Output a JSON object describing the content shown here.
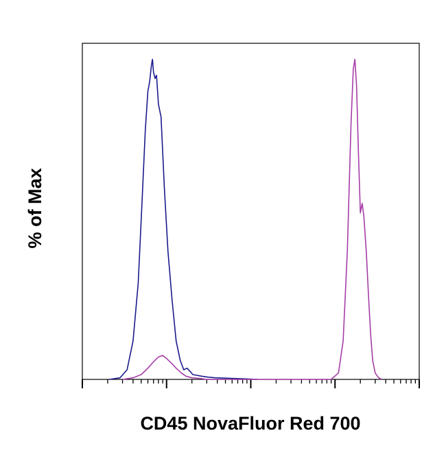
{
  "chart_data": {
    "type": "line",
    "title": "",
    "xlabel": "CD45 NovaFluor Red 700",
    "ylabel": "% of Max",
    "x_scale": "log",
    "xlim": [
      0.01,
      100
    ],
    "ylim": [
      0,
      105
    ],
    "grid": false,
    "legend": "none",
    "series": [
      {
        "color": "#1a1a8c",
        "x": [
          0.021,
          0.028,
          0.034,
          0.04,
          0.046,
          0.051,
          0.056,
          0.06,
          0.063,
          0.066,
          0.068,
          0.07,
          0.073,
          0.076,
          0.08,
          0.086,
          0.094,
          0.104,
          0.116,
          0.13,
          0.145,
          0.16,
          0.175,
          0.19,
          0.205,
          0.225,
          0.26,
          0.31,
          0.38,
          0.47,
          0.6,
          0.8,
          1.2
        ],
        "y": [
          0,
          0.5,
          3,
          12,
          30,
          55,
          78,
          90,
          93,
          98,
          100,
          96,
          94,
          95,
          86,
          82,
          60,
          40,
          25,
          12,
          6,
          3,
          3.5,
          2.5,
          1.5,
          1.3,
          1,
          0.7,
          0.5,
          0.4,
          0.3,
          0.2,
          0
        ]
      },
      {
        "color": "#a63ca6",
        "x": [
          0.03,
          0.04,
          0.05,
          0.06,
          0.07,
          0.08,
          0.09,
          0.1,
          0.115,
          0.13,
          0.15,
          0.17,
          0.2,
          0.25,
          0.3,
          9.0,
          11.0,
          12.5,
          14.0,
          15.5,
          16.5,
          17.2,
          18.0,
          19.0,
          20.0,
          21.0,
          22.0,
          23.5,
          25.0,
          26.5,
          28.0,
          30.0,
          33.0,
          36.0
        ],
        "y": [
          0,
          0.5,
          1.5,
          3.5,
          5.5,
          7,
          7.5,
          6.5,
          5,
          3.5,
          2,
          1,
          0.5,
          0.3,
          0,
          0,
          2,
          12,
          40,
          80,
          97,
          100,
          92,
          70,
          52,
          55,
          51,
          40,
          26,
          14,
          6,
          2,
          0.5,
          0
        ]
      }
    ]
  }
}
